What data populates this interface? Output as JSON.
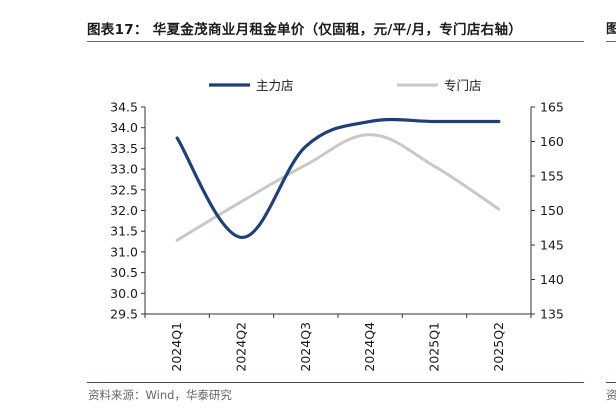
{
  "header": {
    "title": "图表17：  华夏金茂商业月租金单价（仅固租，元/平/月，专门店右轴）",
    "edge_char": "图"
  },
  "footer": {
    "source": "资料来源：Wind，华泰研究",
    "edge_char": "资"
  },
  "colors": {
    "series_main": "#1f3f7a",
    "series_specialty": "#c8c8c8",
    "axis": "#333333"
  },
  "chart_data": {
    "type": "line",
    "title": "华夏金茂商业月租金单价（仅固租，元/平/月，专门店右轴）",
    "categories": [
      "2024Q1",
      "2024Q2",
      "2024Q3",
      "2024Q4",
      "2025Q1",
      "2025Q2"
    ],
    "series": [
      {
        "name": "主力店",
        "axis": "left",
        "values": [
          33.75,
          31.35,
          33.55,
          34.15,
          34.15,
          34.15
        ]
      },
      {
        "name": "专门店",
        "axis": "right",
        "values": [
          145.7,
          151.3,
          156.6,
          161.0,
          156.4,
          150.2
        ]
      }
    ],
    "y_left": {
      "min": 29.5,
      "max": 34.5,
      "ticks": [
        "29.5",
        "30.0",
        "30.5",
        "31.0",
        "31.5",
        "32.0",
        "32.5",
        "33.0",
        "33.5",
        "34.0",
        "34.5"
      ]
    },
    "y_right": {
      "min": 135,
      "max": 165,
      "ticks": [
        "135",
        "140",
        "145",
        "150",
        "155",
        "160",
        "165"
      ]
    },
    "grid": false,
    "legend": "top-center",
    "smooth": true
  }
}
